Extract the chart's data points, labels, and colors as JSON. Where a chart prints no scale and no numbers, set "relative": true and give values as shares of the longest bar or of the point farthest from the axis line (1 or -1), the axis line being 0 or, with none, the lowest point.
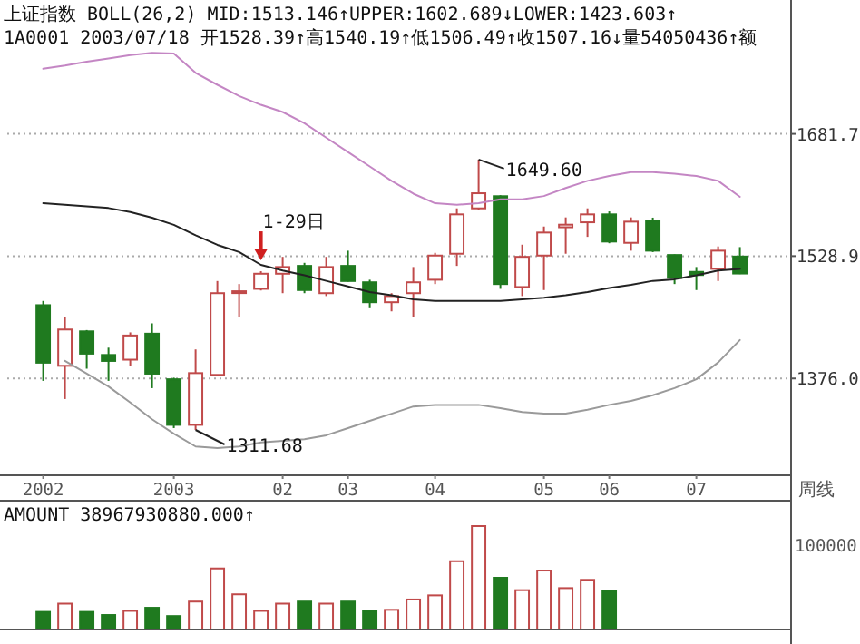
{
  "chart_data": [
    {
      "type": "candlestick",
      "title": "上证指数 BOLL(26,2) MID:1513.146↑UPPER:1602.689↓LOWER:1423.603↑",
      "subtitle": "1A0001 2003/07/18 开1528.39↑高1540.19↑低1506.49↑收1507.16↓量54050436↑额",
      "categories": [
        "2002",
        null,
        null,
        null,
        null,
        null,
        "2003",
        null,
        null,
        null,
        null,
        "02",
        null,
        null,
        "03",
        null,
        null,
        null,
        "04",
        null,
        null,
        null,
        null,
        "05",
        null,
        null,
        "06",
        null,
        null,
        null,
        "07",
        null,
        null
      ],
      "ohlc": [
        [
          1467.6,
          1472.9,
          1373,
          1395.7
        ],
        [
          1391.8,
          1452.4,
          1350.3,
          1437.2
        ],
        [
          1434.9,
          1436.5,
          1388.2,
          1407
        ],
        [
          1405.4,
          1414.5,
          1373,
          1397.9
        ],
        [
          1399.5,
          1433.6,
          1391.8,
          1429.7
        ],
        [
          1432,
          1444.9,
          1363.9,
          1382
        ],
        [
          1375,
          1377,
          1314,
          1318
        ],
        [
          1318,
          1412.3,
          1311.68,
          1382.7
        ],
        [
          1380.5,
          1497.8,
          1380.5,
          1482.6
        ],
        [
          1484,
          1494,
          1452.4,
          1485
        ],
        [
          1488,
          1510,
          1486,
          1506.9
        ],
        [
          1506.9,
          1528,
          1482.6,
          1515.3
        ],
        [
          1516.7,
          1520.5,
          1482.6,
          1486.5
        ],
        [
          1482.6,
          1528,
          1479,
          1515.3
        ],
        [
          1516.7,
          1535.7,
          1497,
          1497.8
        ],
        [
          1496.2,
          1499.4,
          1463.8,
          1471.3
        ],
        [
          1471.3,
          1482.6,
          1459.9,
          1479
        ],
        [
          1482.6,
          1515.3,
          1452.4,
          1496.2
        ],
        [
          1499.4,
          1533,
          1494,
          1529.6
        ],
        [
          1531.9,
          1588.6,
          1516.7,
          1581.1
        ],
        [
          1588.6,
          1649.6,
          1586,
          1607.5
        ],
        [
          1603.8,
          1605,
          1488,
          1494
        ],
        [
          1490.3,
          1543.2,
          1479,
          1528
        ],
        [
          1529.6,
          1565.9,
          1486.5,
          1558.4
        ],
        [
          1565,
          1577.3,
          1531.9,
          1568.2
        ],
        [
          1571.2,
          1588.6,
          1553,
          1581.1
        ],
        [
          1581.1,
          1584.8,
          1545,
          1547.1
        ],
        [
          1545.5,
          1577.3,
          1535.7,
          1572
        ],
        [
          1573.4,
          1577,
          1534,
          1535.7
        ],
        [
          1530.3,
          1531,
          1494,
          1501.7
        ],
        [
          1509.2,
          1515.3,
          1486.5,
          1505.3
        ],
        [
          1513,
          1541,
          1497.8,
          1535.7
        ],
        [
          1528.39,
          1540.19,
          1506.49,
          1507.16
        ]
      ],
      "colors": [
        "#1f7a1f",
        "#c04a4a",
        "#1f7a1f",
        "#1f7a1f",
        "#c04a4a",
        "#1f7a1f",
        "#1f7a1f",
        "#c04a4a",
        "#c04a4a",
        "#c04a4a",
        "#c04a4a",
        "#c04a4a",
        "#1f7a1f",
        "#c04a4a",
        "#1f7a1f",
        "#1f7a1f",
        "#c04a4a",
        "#c04a4a",
        "#c04a4a",
        "#c04a4a",
        "#c04a4a",
        "#1f7a1f",
        "#c04a4a",
        "#c04a4a",
        "#c04a4a",
        "#c04a4a",
        "#1f7a1f",
        "#c04a4a",
        "#1f7a1f",
        "#1f7a1f",
        "#1f7a1f",
        "#c04a4a",
        "#1f7a1f"
      ],
      "series": [
        {
          "type": "line",
          "color": "#c486c4",
          "values": [
            1763,
            1767,
            1772,
            1776,
            1780,
            1783,
            1782,
            1758,
            1743,
            1729,
            1718,
            1709,
            1695,
            1677,
            1659,
            1641,
            1623,
            1607,
            1595,
            1593,
            1595,
            1600,
            1600,
            1604,
            1614,
            1623,
            1629,
            1634,
            1634,
            1632,
            1629,
            1623,
            1603
          ]
        },
        {
          "type": "line",
          "color": "#222222",
          "values": [
            1595,
            1593,
            1591,
            1589,
            1584,
            1577,
            1568,
            1555,
            1543,
            1534,
            1518,
            1511,
            1505,
            1498,
            1491,
            1484,
            1480,
            1475,
            1473,
            1473,
            1473,
            1473,
            1475,
            1477,
            1480,
            1484,
            1489,
            1493,
            1498,
            1500,
            1505,
            1511,
            1513
          ]
        },
        {
          "type": "line",
          "color": "#9a9a9a",
          "values": [
            null,
            1398,
            1382,
            1366,
            1346,
            1325,
            1307,
            1291,
            1289,
            1291,
            1296,
            1298,
            1300,
            1305,
            1314,
            1323,
            1332,
            1341,
            1343,
            1343,
            1343,
            1339,
            1334,
            1332,
            1332,
            1337,
            1343,
            1348,
            1355,
            1364,
            1375,
            1396,
            1424
          ]
        }
      ],
      "ylim": [
        1255,
        1849
      ],
      "yticks": [
        {
          "value": 1376,
          "label": "1376.0"
        },
        {
          "value": 1528.9,
          "label": "1528.9"
        },
        {
          "value": 1681.7,
          "label": "1681.7"
        }
      ],
      "grid": "y",
      "annotations": [
        "1649.60",
        "1311.68",
        {
          "text": "1-29日",
          "y": 1510
        },
        "周线"
      ]
    },
    {
      "type": "bar",
      "title": "AMOUNT 38967930880.000↑",
      "relative": true,
      "tick_labels": false,
      "categories": [
        "2002",
        null,
        null,
        null,
        null,
        null,
        "2003",
        null,
        null,
        null,
        null,
        "02",
        null,
        null,
        "03",
        null,
        null,
        null,
        "04",
        null,
        null,
        null,
        null,
        "05",
        null,
        null,
        "06",
        null,
        null,
        null,
        "07",
        null,
        null
      ],
      "values": [
        0.17,
        0.25,
        0.17,
        0.14,
        0.18,
        0.21,
        0.13,
        0.27,
        0.59,
        0.34,
        0.18,
        0.25,
        0.27,
        0.25,
        0.27,
        0.18,
        0.19,
        0.29,
        0.33,
        0.66,
        1,
        0.5,
        0.38,
        0.57,
        0.4,
        0.48,
        0.37,
        null,
        null,
        null,
        null,
        null,
        null
      ],
      "colors": [
        "#1f7a1f",
        "#c04a4a",
        "#1f7a1f",
        "#1f7a1f",
        "#c04a4a",
        "#1f7a1f",
        "#1f7a1f",
        "#c04a4a",
        "#c04a4a",
        "#c04a4a",
        "#c04a4a",
        "#c04a4a",
        "#1f7a1f",
        "#c04a4a",
        "#1f7a1f",
        "#1f7a1f",
        "#c04a4a",
        "#c04a4a",
        "#c04a4a",
        "#c04a4a",
        "#c04a4a",
        "#1f7a1f",
        "#c04a4a",
        "#c04a4a",
        "#c04a4a",
        "#c04a4a",
        "#1f7a1f",
        "#c04a4a",
        "#1f7a1f",
        "#1f7a1f",
        "#1f7a1f",
        "#c04a4a",
        "#1f7a1f"
      ],
      "annotations": [
        "100000"
      ]
    }
  ]
}
